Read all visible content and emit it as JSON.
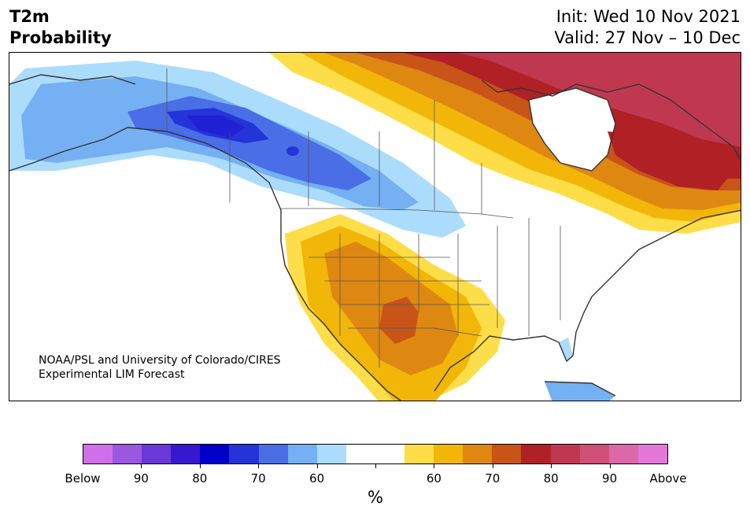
{
  "header": {
    "title_line1": "T2m",
    "title_line2": "Probability",
    "init": "Init: Wed 10 Nov 2021",
    "valid": "Valid: 27 Nov – 10 Dec"
  },
  "credit": {
    "line1": "NOAA/PSL and University of Colorado/CIRES",
    "line2": "Experimental LIM Forecast"
  },
  "colorbar": {
    "unit": "%",
    "colors": [
      "#d070e8",
      "#9a58e0",
      "#6b38d8",
      "#3618d0",
      "#0000c8",
      "#2434d8",
      "#4a6ee6",
      "#74b0f2",
      "#acdcfc",
      "#ffffff",
      "#ffffff",
      "#fede48",
      "#f2b608",
      "#de8812",
      "#c85418",
      "#b02024",
      "#c03850",
      "#d05078",
      "#dc68a8",
      "#e478d8"
    ],
    "labels": [
      "Below",
      "90",
      "80",
      "70",
      "60",
      "60",
      "70",
      "80",
      "90",
      "Above"
    ]
  }
}
